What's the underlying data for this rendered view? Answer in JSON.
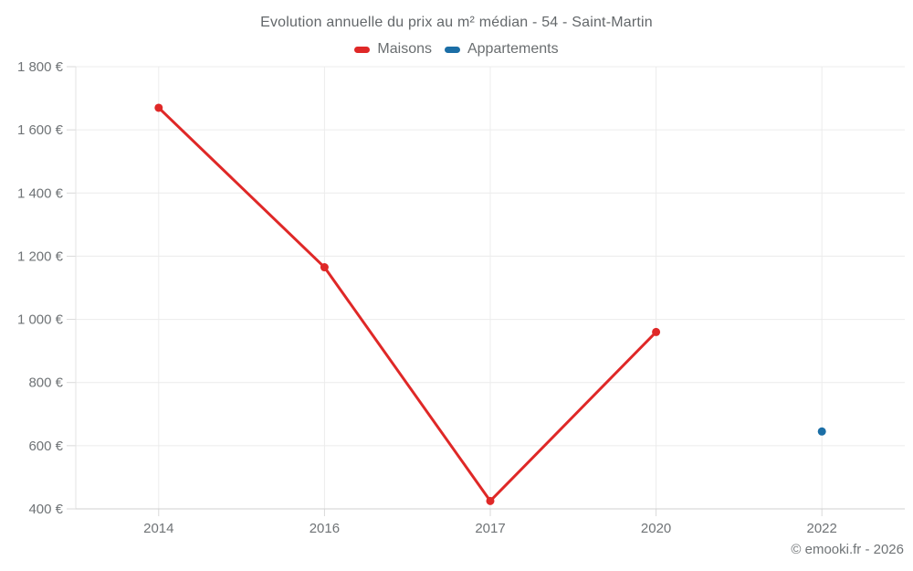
{
  "title": "Evolution annuelle du prix au m² médian - 54 - Saint-Martin",
  "copyright": "© emooki.fr - 2026",
  "colors": {
    "maisons": "#df2827",
    "appartements": "#1b6ea6",
    "grid": "#ececec",
    "axis": "#d0d0d0",
    "tick": "#d9d9d9",
    "axis_text": "#6f7376"
  },
  "chart_data": {
    "type": "line",
    "categories": [
      "2014",
      "2016",
      "2017",
      "2020",
      "2022"
    ],
    "series": [
      {
        "name": "Maisons",
        "color": "#df2827",
        "values": [
          1670,
          1165,
          425,
          960,
          null
        ]
      },
      {
        "name": "Appartements",
        "color": "#1b6ea6",
        "values": [
          null,
          null,
          null,
          null,
          645
        ]
      }
    ],
    "title": "Evolution annuelle du prix au m² médian - 54 - Saint-Martin",
    "xlabel": "",
    "ylabel": "",
    "ylim": [
      400,
      1800
    ],
    "ytick_step": 200,
    "ytick_labels": [
      "400 €",
      "600 €",
      "800 €",
      "1 000 €",
      "1 200 €",
      "1 400 €",
      "1 600 €",
      "1 800 €"
    ],
    "grid": true,
    "legend_position": "top"
  }
}
